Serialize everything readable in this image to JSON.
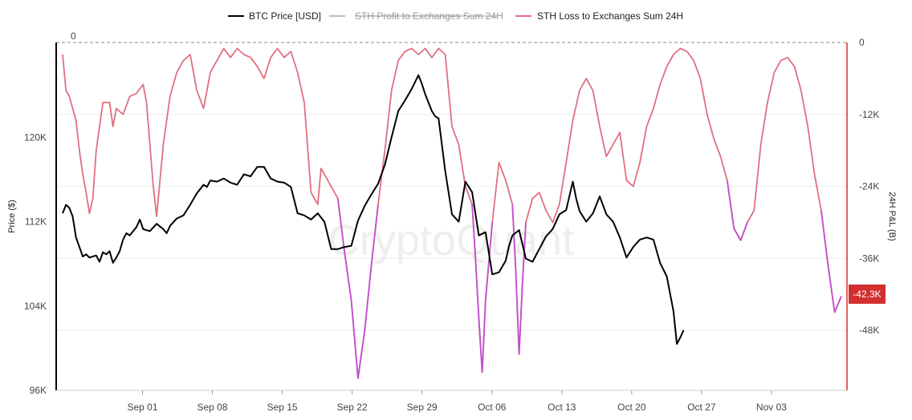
{
  "chart_data": {
    "type": "line",
    "watermark": "CryptoQuant",
    "legend": {
      "placement": "top-center",
      "items": [
        {
          "name": "BTC Price [USD]",
          "color": "#000000",
          "hidden": false
        },
        {
          "name": "STH Profit to Exchanges Sum 24H",
          "color": "#bdbdbd",
          "hidden": true
        },
        {
          "name": "STH Loss to Exchanges Sum 24H",
          "color": "#e07080",
          "hidden": false
        }
      ]
    },
    "x_axis": {
      "ticks": [
        "Sep 01",
        "Sep 08",
        "Sep 15",
        "Sep 22",
        "Sep 29",
        "Oct 06",
        "Oct 13",
        "Oct 20",
        "Oct 27",
        "Nov 03"
      ],
      "tick_day_index": [
        8,
        15,
        22,
        29,
        36,
        43,
        50,
        57,
        64,
        71
      ],
      "range_day_index": [
        0,
        78
      ],
      "note_day_index": "day 0 = Aug 24"
    },
    "y_left": {
      "title": "Price ($)",
      "ticks": [
        96000,
        104000,
        112000,
        120000
      ],
      "tick_labels": [
        "96K",
        "104K",
        "112K",
        "120K"
      ],
      "range": [
        96000,
        129000
      ]
    },
    "y_right": {
      "title": "24H P&L (B)",
      "ticks": [
        0,
        -12000,
        -24000,
        -36000,
        -48000
      ],
      "tick_labels": [
        "0",
        "-12K",
        "-24K",
        "-36K",
        "-48K"
      ],
      "range": [
        -58000,
        0
      ],
      "zero_label": "0",
      "current_value_label": "-42.3K",
      "current_value": -42300,
      "badge_color": "#d32f2f"
    },
    "series": [
      {
        "name": "BTC Price [USD]",
        "axis": "left",
        "color": "#000000",
        "points": [
          [
            0,
            112800
          ],
          [
            0.5,
            113600
          ],
          [
            1,
            113300
          ],
          [
            1.5,
            112500
          ],
          [
            2,
            110500
          ],
          [
            2.5,
            109600
          ],
          [
            3,
            108700
          ],
          [
            3.5,
            108900
          ],
          [
            4,
            108600
          ],
          [
            5,
            108800
          ],
          [
            5.5,
            108200
          ],
          [
            6,
            109100
          ],
          [
            6.5,
            108900
          ],
          [
            7,
            109200
          ],
          [
            7.5,
            108100
          ],
          [
            8,
            108600
          ],
          [
            8.5,
            109200
          ],
          [
            9,
            110300
          ],
          [
            9.5,
            110900
          ],
          [
            10,
            110700
          ],
          [
            11,
            111500
          ],
          [
            11.5,
            112200
          ],
          [
            12,
            111300
          ],
          [
            13,
            111100
          ],
          [
            14,
            111800
          ],
          [
            15,
            111300
          ],
          [
            15.5,
            110900
          ],
          [
            16,
            111600
          ],
          [
            17,
            112300
          ],
          [
            18,
            112600
          ],
          [
            19,
            113600
          ],
          [
            20,
            114700
          ],
          [
            21,
            115500
          ],
          [
            21.5,
            115300
          ],
          [
            22,
            115900
          ],
          [
            23,
            115800
          ],
          [
            24,
            116100
          ],
          [
            25,
            115700
          ],
          [
            26,
            115500
          ],
          [
            27,
            116500
          ],
          [
            28,
            116300
          ],
          [
            29,
            117200
          ],
          [
            30,
            117200
          ],
          [
            31,
            116100
          ],
          [
            32,
            115800
          ],
          [
            33,
            115700
          ],
          [
            34,
            115300
          ],
          [
            35,
            112800
          ],
          [
            36,
            112600
          ],
          [
            37,
            112200
          ],
          [
            38,
            112800
          ],
          [
            39,
            112000
          ],
          [
            40,
            109400
          ],
          [
            41,
            109400
          ],
          [
            42,
            109600
          ],
          [
            43,
            109700
          ],
          [
            44,
            112100
          ],
          [
            45,
            113500
          ],
          [
            46,
            114600
          ],
          [
            47,
            115600
          ],
          [
            48,
            117400
          ],
          [
            49,
            120000
          ],
          [
            50,
            122500
          ],
          [
            51,
            123500
          ],
          [
            52,
            124600
          ],
          [
            53,
            125900
          ],
          [
            53.5,
            125100
          ],
          [
            54,
            124100
          ],
          [
            55,
            122500
          ],
          [
            55.5,
            122000
          ],
          [
            56,
            121800
          ],
          [
            57,
            116800
          ],
          [
            58,
            112700
          ],
          [
            59,
            112000
          ],
          [
            60,
            115800
          ],
          [
            61,
            114800
          ],
          [
            62,
            110700
          ],
          [
            63,
            111000
          ],
          [
            64,
            107000
          ],
          [
            65,
            107200
          ],
          [
            66,
            108300
          ],
          [
            66.5,
            109700
          ],
          [
            67,
            110700
          ],
          [
            68,
            111200
          ],
          [
            69,
            108500
          ],
          [
            70,
            108200
          ],
          [
            71,
            109400
          ],
          [
            72,
            110600
          ],
          [
            73,
            111300
          ],
          [
            74,
            112700
          ],
          [
            75,
            113100
          ],
          [
            76,
            115800
          ],
          [
            76.5,
            114200
          ],
          [
            77,
            113000
          ],
          [
            78,
            112000
          ],
          [
            79,
            112800
          ],
          [
            80,
            114400
          ],
          [
            81,
            112700
          ],
          [
            82,
            112000
          ],
          [
            83,
            110500
          ],
          [
            84,
            108600
          ],
          [
            85,
            109600
          ],
          [
            86,
            110300
          ],
          [
            87,
            110500
          ],
          [
            88,
            110300
          ],
          [
            89,
            108100
          ],
          [
            90,
            106800
          ],
          [
            91,
            103500
          ],
          [
            91.5,
            100400
          ],
          [
            92,
            101000
          ],
          [
            92.5,
            101700
          ]
        ]
      },
      {
        "name": "STH Loss to Exchanges Sum 24H",
        "axis": "right",
        "color": "#e07080",
        "points": [
          [
            0,
            -2000
          ],
          [
            0.5,
            -8000
          ],
          [
            1,
            -9000
          ],
          [
            1.5,
            -11000
          ],
          [
            2,
            -13000
          ],
          [
            2.5,
            -18000
          ],
          [
            3,
            -22000
          ],
          [
            3.5,
            -25000
          ],
          [
            4,
            -28500
          ],
          [
            4.5,
            -26000
          ],
          [
            5,
            -18000
          ],
          [
            6,
            -10000
          ],
          [
            7,
            -10000
          ],
          [
            7.5,
            -14000
          ],
          [
            8,
            -11000
          ],
          [
            9,
            -12000
          ],
          [
            10,
            -9000
          ],
          [
            11,
            -8500
          ],
          [
            12,
            -7000
          ],
          [
            12.5,
            -10000
          ],
          [
            13,
            -17000
          ],
          [
            13.5,
            -24000
          ],
          [
            14,
            -29000
          ],
          [
            15,
            -17000
          ],
          [
            16,
            -9000
          ],
          [
            17,
            -5000
          ],
          [
            18,
            -3000
          ],
          [
            19,
            -2000
          ],
          [
            20,
            -8000
          ],
          [
            21,
            -11000
          ],
          [
            22,
            -5000
          ],
          [
            23,
            -3000
          ],
          [
            24,
            -1000
          ],
          [
            25,
            -2500
          ],
          [
            26,
            -1000
          ],
          [
            27,
            -2000
          ],
          [
            28,
            -2500
          ],
          [
            29,
            -4000
          ],
          [
            30,
            -6000
          ],
          [
            31,
            -2500
          ],
          [
            32,
            -1000
          ],
          [
            33,
            -2500
          ],
          [
            34,
            -1500
          ],
          [
            35,
            -5000
          ],
          [
            36,
            -10000
          ],
          [
            37,
            -25000
          ],
          [
            38,
            -27000
          ],
          [
            38.5,
            -21000
          ],
          [
            39,
            -22000
          ],
          [
            40,
            -24000
          ],
          [
            41,
            -26000
          ],
          [
            42,
            -35000
          ],
          [
            43,
            -43000
          ],
          [
            44,
            -56000
          ],
          [
            45,
            -48000
          ],
          [
            46,
            -37000
          ],
          [
            47,
            -27000
          ],
          [
            48,
            -18000
          ],
          [
            49,
            -8000
          ],
          [
            50,
            -3000
          ],
          [
            51,
            -1500
          ],
          [
            52,
            -1000
          ],
          [
            53,
            -2000
          ],
          [
            54,
            -1000
          ],
          [
            55,
            -2500
          ],
          [
            56,
            -1000
          ],
          [
            57,
            -2000
          ],
          [
            58,
            -14000
          ],
          [
            59,
            -17000
          ],
          [
            60,
            -24000
          ],
          [
            61,
            -27000
          ],
          [
            61.5,
            -36000
          ],
          [
            62,
            -46000
          ],
          [
            62.5,
            -55000
          ],
          [
            63,
            -43000
          ],
          [
            64,
            -30000
          ],
          [
            65,
            -20000
          ],
          [
            66,
            -23000
          ],
          [
            67,
            -27000
          ],
          [
            67.5,
            -38000
          ],
          [
            68,
            -52000
          ],
          [
            68.5,
            -40000
          ],
          [
            69,
            -30000
          ],
          [
            70,
            -26000
          ],
          [
            71,
            -25000
          ],
          [
            72,
            -28000
          ],
          [
            73,
            -30000
          ],
          [
            74,
            -27000
          ],
          [
            75,
            -20000
          ],
          [
            76,
            -13000
          ],
          [
            77,
            -8000
          ],
          [
            78,
            -6000
          ],
          [
            79,
            -8000
          ],
          [
            80,
            -14000
          ],
          [
            81,
            -19000
          ],
          [
            82,
            -17000
          ],
          [
            83,
            -15000
          ],
          [
            84,
            -23000
          ],
          [
            85,
            -24000
          ],
          [
            86,
            -20000
          ],
          [
            87,
            -14000
          ],
          [
            88,
            -11000
          ],
          [
            89,
            -7000
          ],
          [
            90,
            -4000
          ],
          [
            91,
            -2000
          ],
          [
            92,
            -1000
          ],
          [
            93,
            -1500
          ],
          [
            94,
            -3000
          ],
          [
            95,
            -6000
          ],
          [
            96,
            -12000
          ],
          [
            97,
            -16000
          ],
          [
            98,
            -19000
          ],
          [
            99,
            -23000
          ],
          [
            100,
            -31000
          ],
          [
            101,
            -33000
          ],
          [
            102,
            -30000
          ],
          [
            103,
            -28000
          ],
          [
            104,
            -17000
          ],
          [
            105,
            -10000
          ],
          [
            106,
            -5000
          ],
          [
            107,
            -3000
          ],
          [
            108,
            -2500
          ],
          [
            109,
            -4000
          ],
          [
            110,
            -8000
          ],
          [
            111,
            -14000
          ],
          [
            112,
            -22000
          ],
          [
            113,
            -28000
          ],
          [
            114,
            -37000
          ],
          [
            115,
            -45000
          ],
          [
            116,
            -42300
          ]
        ]
      }
    ],
    "price_index_scale": 116,
    "pnl_index_scale": 116
  }
}
